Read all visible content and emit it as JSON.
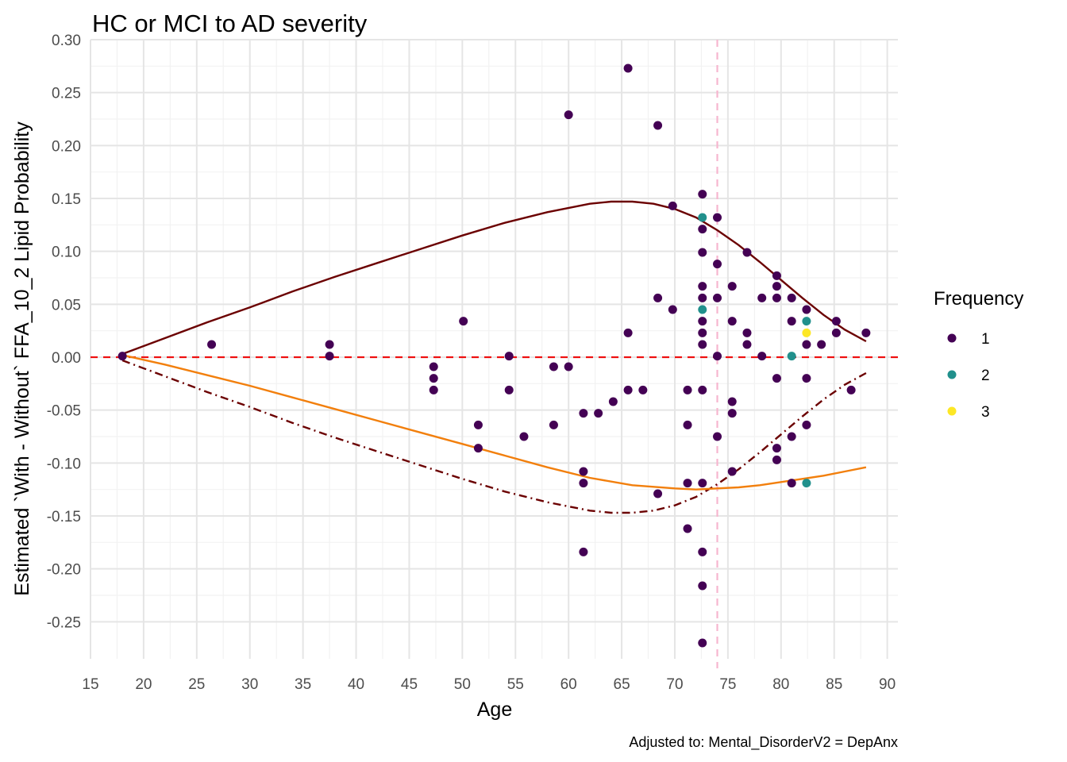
{
  "chart_data": {
    "type": "scatter",
    "title": "HC or MCI to AD severity",
    "xlabel": "Age",
    "ylabel": "Estimated `With - Without` FFA_10_2 Lipid Probability",
    "caption": "Adjusted to: Mental_DisorderV2 = DepAnx",
    "xlim": [
      15,
      91
    ],
    "ylim": [
      -0.285,
      0.3
    ],
    "x_ticks": [
      15,
      20,
      25,
      30,
      35,
      40,
      45,
      50,
      55,
      60,
      65,
      70,
      75,
      80,
      85,
      90
    ],
    "x_tick_labels": [
      "15",
      "20",
      "25",
      "30",
      "35",
      "40",
      "45",
      "50",
      "55",
      "60",
      "65",
      "70",
      "75",
      "80",
      "85",
      "90"
    ],
    "y_ticks": [
      -0.25,
      -0.2,
      -0.15,
      -0.1,
      -0.05,
      0.0,
      0.05,
      0.1,
      0.15,
      0.2,
      0.25,
      0.3
    ],
    "y_tick_labels": [
      "-0.25",
      "-0.20",
      "-0.15",
      "-0.10",
      "-0.05",
      "0.00",
      "0.05",
      "0.10",
      "0.15",
      "0.20",
      "0.25",
      "0.30"
    ],
    "grid": true,
    "reference_lines": [
      {
        "orientation": "horizontal",
        "value": 0.0,
        "color": "#ee1111",
        "style": "dashed"
      },
      {
        "orientation": "vertical",
        "value": 74.0,
        "color": "#f7b6cf",
        "style": "dashed"
      }
    ],
    "legend": {
      "title": "Frequency",
      "placement": "right",
      "entries": [
        {
          "label": "1",
          "color": "#440154"
        },
        {
          "label": "2",
          "color": "#21908c"
        },
        {
          "label": "3",
          "color": "#fde725"
        }
      ]
    },
    "points": [
      {
        "x": 18.0,
        "y": 0.001,
        "freq": 1
      },
      {
        "x": 26.4,
        "y": 0.012,
        "freq": 1
      },
      {
        "x": 37.5,
        "y": 0.012,
        "freq": 1
      },
      {
        "x": 37.5,
        "y": 0.001,
        "freq": 1
      },
      {
        "x": 47.3,
        "y": -0.009,
        "freq": 1
      },
      {
        "x": 47.3,
        "y": -0.02,
        "freq": 1
      },
      {
        "x": 47.3,
        "y": -0.031,
        "freq": 1
      },
      {
        "x": 50.1,
        "y": 0.034,
        "freq": 1
      },
      {
        "x": 51.5,
        "y": -0.064,
        "freq": 1
      },
      {
        "x": 51.5,
        "y": -0.086,
        "freq": 1
      },
      {
        "x": 54.4,
        "y": 0.001,
        "freq": 1
      },
      {
        "x": 54.4,
        "y": -0.031,
        "freq": 1
      },
      {
        "x": 55.8,
        "y": -0.075,
        "freq": 1
      },
      {
        "x": 58.6,
        "y": -0.009,
        "freq": 1
      },
      {
        "x": 58.6,
        "y": -0.064,
        "freq": 1
      },
      {
        "x": 60.0,
        "y": 0.229,
        "freq": 1
      },
      {
        "x": 60.0,
        "y": -0.009,
        "freq": 1
      },
      {
        "x": 61.4,
        "y": -0.053,
        "freq": 1
      },
      {
        "x": 61.4,
        "y": -0.108,
        "freq": 1
      },
      {
        "x": 61.4,
        "y": -0.119,
        "freq": 1
      },
      {
        "x": 61.4,
        "y": -0.184,
        "freq": 1
      },
      {
        "x": 62.8,
        "y": -0.053,
        "freq": 1
      },
      {
        "x": 64.2,
        "y": -0.042,
        "freq": 1
      },
      {
        "x": 65.6,
        "y": 0.273,
        "freq": 1
      },
      {
        "x": 65.6,
        "y": 0.023,
        "freq": 1
      },
      {
        "x": 65.6,
        "y": -0.031,
        "freq": 1
      },
      {
        "x": 67.0,
        "y": -0.031,
        "freq": 1
      },
      {
        "x": 68.4,
        "y": 0.219,
        "freq": 1
      },
      {
        "x": 68.4,
        "y": 0.056,
        "freq": 1
      },
      {
        "x": 68.4,
        "y": -0.129,
        "freq": 1
      },
      {
        "x": 69.8,
        "y": 0.143,
        "freq": 1
      },
      {
        "x": 69.8,
        "y": 0.045,
        "freq": 1
      },
      {
        "x": 71.2,
        "y": -0.031,
        "freq": 1
      },
      {
        "x": 71.2,
        "y": -0.064,
        "freq": 1
      },
      {
        "x": 71.2,
        "y": -0.119,
        "freq": 1
      },
      {
        "x": 71.2,
        "y": -0.162,
        "freq": 1
      },
      {
        "x": 72.6,
        "y": 0.154,
        "freq": 1
      },
      {
        "x": 72.6,
        "y": 0.132,
        "freq": 2
      },
      {
        "x": 72.6,
        "y": 0.121,
        "freq": 1
      },
      {
        "x": 72.6,
        "y": 0.099,
        "freq": 1
      },
      {
        "x": 72.6,
        "y": 0.067,
        "freq": 1
      },
      {
        "x": 72.6,
        "y": 0.056,
        "freq": 1
      },
      {
        "x": 72.6,
        "y": 0.045,
        "freq": 2
      },
      {
        "x": 72.6,
        "y": 0.034,
        "freq": 1
      },
      {
        "x": 72.6,
        "y": 0.023,
        "freq": 1
      },
      {
        "x": 72.6,
        "y": 0.012,
        "freq": 1
      },
      {
        "x": 72.6,
        "y": -0.031,
        "freq": 1
      },
      {
        "x": 72.6,
        "y": -0.119,
        "freq": 1
      },
      {
        "x": 72.6,
        "y": -0.184,
        "freq": 1
      },
      {
        "x": 72.6,
        "y": -0.216,
        "freq": 1
      },
      {
        "x": 72.6,
        "y": -0.27,
        "freq": 1
      },
      {
        "x": 74.0,
        "y": 0.132,
        "freq": 1
      },
      {
        "x": 74.0,
        "y": 0.088,
        "freq": 1
      },
      {
        "x": 74.0,
        "y": 0.056,
        "freq": 1
      },
      {
        "x": 74.0,
        "y": 0.001,
        "freq": 1
      },
      {
        "x": 74.0,
        "y": -0.075,
        "freq": 1
      },
      {
        "x": 75.4,
        "y": 0.067,
        "freq": 1
      },
      {
        "x": 75.4,
        "y": 0.034,
        "freq": 1
      },
      {
        "x": 75.4,
        "y": -0.042,
        "freq": 1
      },
      {
        "x": 75.4,
        "y": -0.053,
        "freq": 1
      },
      {
        "x": 75.4,
        "y": -0.108,
        "freq": 1
      },
      {
        "x": 76.8,
        "y": 0.099,
        "freq": 1
      },
      {
        "x": 76.8,
        "y": 0.023,
        "freq": 1
      },
      {
        "x": 76.8,
        "y": 0.012,
        "freq": 1
      },
      {
        "x": 78.2,
        "y": 0.056,
        "freq": 1
      },
      {
        "x": 78.2,
        "y": 0.001,
        "freq": 1
      },
      {
        "x": 79.6,
        "y": 0.077,
        "freq": 1
      },
      {
        "x": 79.6,
        "y": 0.067,
        "freq": 1
      },
      {
        "x": 79.6,
        "y": 0.056,
        "freq": 1
      },
      {
        "x": 79.6,
        "y": -0.02,
        "freq": 1
      },
      {
        "x": 79.6,
        "y": -0.086,
        "freq": 1
      },
      {
        "x": 79.6,
        "y": -0.097,
        "freq": 1
      },
      {
        "x": 81.0,
        "y": 0.056,
        "freq": 1
      },
      {
        "x": 81.0,
        "y": 0.034,
        "freq": 1
      },
      {
        "x": 81.0,
        "y": 0.001,
        "freq": 2
      },
      {
        "x": 81.0,
        "y": -0.075,
        "freq": 1
      },
      {
        "x": 81.0,
        "y": -0.119,
        "freq": 1
      },
      {
        "x": 82.4,
        "y": 0.045,
        "freq": 1
      },
      {
        "x": 82.4,
        "y": 0.034,
        "freq": 2
      },
      {
        "x": 82.4,
        "y": 0.023,
        "freq": 3
      },
      {
        "x": 82.4,
        "y": 0.012,
        "freq": 1
      },
      {
        "x": 82.4,
        "y": -0.02,
        "freq": 1
      },
      {
        "x": 82.4,
        "y": -0.064,
        "freq": 1
      },
      {
        "x": 82.4,
        "y": -0.119,
        "freq": 2
      },
      {
        "x": 83.8,
        "y": 0.012,
        "freq": 1
      },
      {
        "x": 85.2,
        "y": 0.034,
        "freq": 1
      },
      {
        "x": 85.2,
        "y": 0.023,
        "freq": 1
      },
      {
        "x": 86.6,
        "y": -0.031,
        "freq": 1
      },
      {
        "x": 88.0,
        "y": 0.023,
        "freq": 1
      }
    ],
    "curves": [
      {
        "color": "#6b0000",
        "style": "solid",
        "x": [
          18,
          22,
          26,
          30,
          34,
          38,
          42,
          46,
          50,
          54,
          58,
          62,
          64,
          66,
          68,
          70,
          72,
          74,
          76,
          78,
          80,
          82,
          84,
          86,
          88
        ],
        "y": [
          0.003,
          0.018,
          0.033,
          0.047,
          0.062,
          0.076,
          0.089,
          0.102,
          0.115,
          0.127,
          0.137,
          0.145,
          0.147,
          0.147,
          0.145,
          0.14,
          0.132,
          0.12,
          0.106,
          0.09,
          0.073,
          0.056,
          0.04,
          0.026,
          0.015
        ]
      },
      {
        "color": "#6b0000",
        "style": "dashdot",
        "x": [
          18,
          22,
          26,
          30,
          34,
          38,
          42,
          46,
          50,
          54,
          58,
          62,
          64,
          66,
          68,
          70,
          72,
          74,
          76,
          78,
          80,
          82,
          84,
          86,
          88
        ],
        "y": [
          -0.003,
          -0.018,
          -0.033,
          -0.047,
          -0.062,
          -0.076,
          -0.089,
          -0.102,
          -0.115,
          -0.127,
          -0.137,
          -0.145,
          -0.147,
          -0.147,
          -0.145,
          -0.14,
          -0.132,
          -0.12,
          -0.106,
          -0.09,
          -0.073,
          -0.056,
          -0.04,
          -0.026,
          -0.015
        ]
      },
      {
        "color": "#f27f0c",
        "style": "solid",
        "x": [
          18,
          22,
          26,
          30,
          34,
          38,
          42,
          46,
          50,
          54,
          58,
          62,
          66,
          70,
          72,
          74,
          76,
          78,
          80,
          82,
          84,
          86,
          88
        ],
        "y": [
          0.002,
          -0.007,
          -0.017,
          -0.027,
          -0.038,
          -0.049,
          -0.06,
          -0.071,
          -0.082,
          -0.093,
          -0.104,
          -0.114,
          -0.121,
          -0.124,
          -0.125,
          -0.124,
          -0.123,
          -0.121,
          -0.118,
          -0.115,
          -0.112,
          -0.108,
          -0.104
        ]
      }
    ]
  }
}
